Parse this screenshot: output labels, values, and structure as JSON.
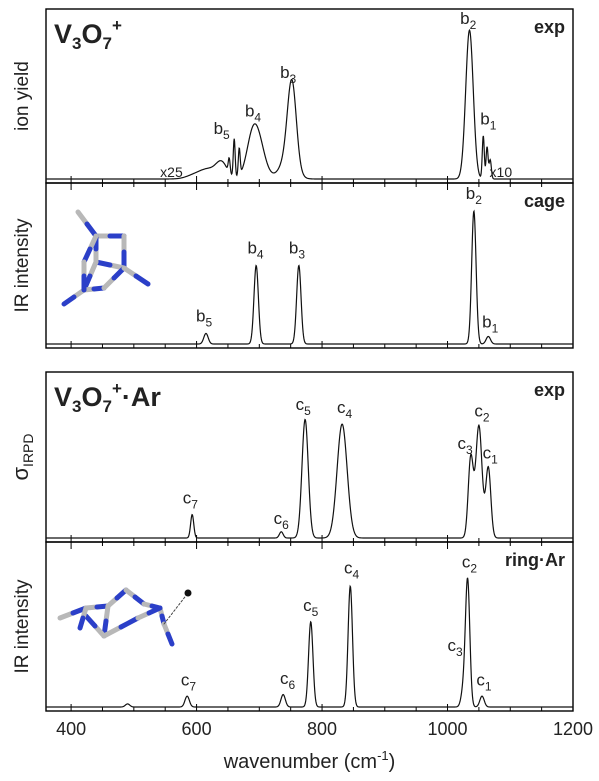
{
  "chart_data": [
    {
      "type": "line",
      "panel": "V3O7+ experiment",
      "title": {
        "base": "V",
        "sub1": "3",
        "mid": "O",
        "sub2": "7",
        "sup": "+"
      },
      "tag": "exp",
      "ylabel": "ion yield",
      "xlim": [
        360,
        1200
      ],
      "multipliers": [
        {
          "text": "x25",
          "x": 560
        },
        {
          "text": "x10",
          "x": 1085
        }
      ],
      "peaks": [
        {
          "x": 1035,
          "h": 0.93,
          "w": 6
        },
        {
          "x": 752,
          "h": 0.52,
          "w": 7
        },
        {
          "x": 745,
          "h": 0.12,
          "w": 12
        },
        {
          "x": 690,
          "h": 0.27,
          "w": 10
        },
        {
          "x": 702,
          "h": 0.13,
          "w": 10
        },
        {
          "x": 640,
          "h": 0.1,
          "w": 9
        },
        {
          "x": 620,
          "h": 0.05,
          "w": 12
        },
        {
          "x": 600,
          "h": 0.03,
          "w": 14
        },
        {
          "x": 660,
          "h": 0.24,
          "w": 1.5
        },
        {
          "x": 668,
          "h": 0.17,
          "w": 1.5
        },
        {
          "x": 652,
          "h": 0.09,
          "w": 1.5
        },
        {
          "x": 1057,
          "h": 0.27,
          "w": 1.6
        },
        {
          "x": 1063,
          "h": 0.2,
          "w": 1.6
        },
        {
          "x": 1068,
          "h": 0.12,
          "w": 1.8
        }
      ],
      "labels": [
        {
          "main": "b",
          "sub": "2",
          "x": 1033,
          "y": 0.97
        },
        {
          "main": "b",
          "sub": "3",
          "x": 746,
          "y": 0.63
        },
        {
          "main": "b",
          "sub": "4",
          "x": 690,
          "y": 0.39
        },
        {
          "main": "b",
          "sub": "5",
          "x": 640,
          "y": 0.28
        },
        {
          "main": "b",
          "sub": "1",
          "x": 1065,
          "y": 0.34
        }
      ]
    },
    {
      "type": "line",
      "panel": "cage computed",
      "tag": "cage",
      "ylabel": "IR intensity",
      "xlim": [
        360,
        1200
      ],
      "molecule": "cage",
      "peaks": [
        {
          "x": 1042,
          "h": 0.88,
          "w": 3.5
        },
        {
          "x": 763,
          "h": 0.52,
          "w": 3.5
        },
        {
          "x": 695,
          "h": 0.52,
          "w": 3.5
        },
        {
          "x": 615,
          "h": 0.07,
          "w": 3.5
        },
        {
          "x": 1065,
          "h": 0.05,
          "w": 3.5
        }
      ],
      "labels": [
        {
          "main": "b",
          "sub": "2",
          "x": 1042,
          "y": 0.96
        },
        {
          "main": "b",
          "sub": "3",
          "x": 760,
          "y": 0.6
        },
        {
          "main": "b",
          "sub": "4",
          "x": 694,
          "y": 0.6
        },
        {
          "main": "b",
          "sub": "5",
          "x": 612,
          "y": 0.15
        },
        {
          "main": "b",
          "sub": "1",
          "x": 1068,
          "y": 0.11
        }
      ]
    },
    {
      "type": "line",
      "panel": "V3O7+·Ar experiment",
      "title": {
        "base": "V",
        "sub1": "3",
        "mid": "O",
        "sub2": "7",
        "sup": "+",
        "tail": "·Ar"
      },
      "tag": "exp",
      "ylabel": {
        "main": "σ",
        "sub": "IRPD"
      },
      "xlim": [
        360,
        1200
      ],
      "peaks": [
        {
          "x": 773,
          "h": 0.76,
          "w": 5
        },
        {
          "x": 832,
          "h": 0.73,
          "w": 8
        },
        {
          "x": 1050,
          "h": 0.72,
          "w": 5
        },
        {
          "x": 1037,
          "h": 0.51,
          "w": 4
        },
        {
          "x": 1065,
          "h": 0.45,
          "w": 4
        },
        {
          "x": 593,
          "h": 0.15,
          "w": 2.5
        },
        {
          "x": 735,
          "h": 0.04,
          "w": 3
        }
      ],
      "labels": [
        {
          "main": "c",
          "sub": "5",
          "x": 770,
          "y": 0.82
        },
        {
          "main": "c",
          "sub": "4",
          "x": 836,
          "y": 0.8
        },
        {
          "main": "c",
          "sub": "2",
          "x": 1055,
          "y": 0.78
        },
        {
          "main": "c",
          "sub": "3",
          "x": 1028,
          "y": 0.57
        },
        {
          "main": "c",
          "sub": "1",
          "x": 1068,
          "y": 0.51
        },
        {
          "main": "c",
          "sub": "7",
          "x": 590,
          "y": 0.22
        },
        {
          "main": "c",
          "sub": "6",
          "x": 735,
          "y": 0.09
        }
      ]
    },
    {
      "type": "line",
      "panel": "ring·Ar computed",
      "tag": "ring·Ar",
      "ylabel": "IR intensity",
      "xlim": [
        360,
        1200
      ],
      "molecule": "ring",
      "peaks": [
        {
          "x": 1032,
          "h": 0.82,
          "w": 3.5
        },
        {
          "x": 845,
          "h": 0.78,
          "w": 3.5
        },
        {
          "x": 782,
          "h": 0.55,
          "w": 3.5
        },
        {
          "x": 1025,
          "h": 0.1,
          "w": 3.5
        },
        {
          "x": 1055,
          "h": 0.07,
          "w": 3.5
        },
        {
          "x": 585,
          "h": 0.07,
          "w": 3.5
        },
        {
          "x": 738,
          "h": 0.08,
          "w": 3.5
        },
        {
          "x": 490,
          "h": 0.02,
          "w": 3.5
        }
      ],
      "labels": [
        {
          "main": "c",
          "sub": "2",
          "x": 1035,
          "y": 0.9
        },
        {
          "main": "c",
          "sub": "4",
          "x": 847,
          "y": 0.86
        },
        {
          "main": "c",
          "sub": "5",
          "x": 782,
          "y": 0.62
        },
        {
          "main": "c",
          "sub": "3",
          "x": 1012,
          "y": 0.36
        },
        {
          "main": "c",
          "sub": "1",
          "x": 1058,
          "y": 0.14
        },
        {
          "main": "c",
          "sub": "7",
          "x": 587,
          "y": 0.14
        },
        {
          "main": "c",
          "sub": "6",
          "x": 745,
          "y": 0.15
        }
      ]
    }
  ],
  "xaxis": {
    "label": "wavenumber (cm",
    "label_sup": "-1",
    "label_end": ")",
    "ticks": [
      400,
      600,
      800,
      1000,
      1200
    ],
    "minor_step": 50
  }
}
